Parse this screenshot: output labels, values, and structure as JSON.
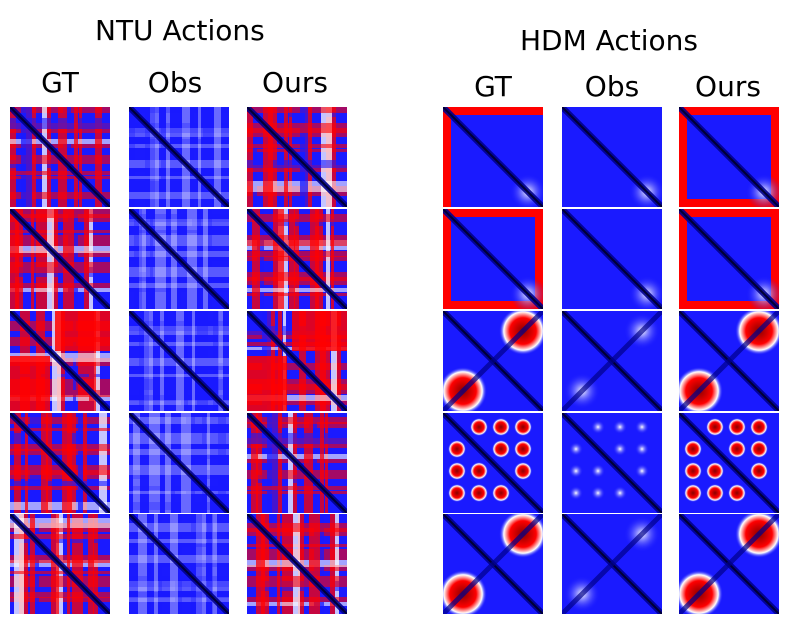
{
  "groups": [
    {
      "title": "NTU Actions",
      "columns": [
        "GT",
        "Obs",
        "Ours"
      ]
    },
    {
      "title": "HDM Actions",
      "columns": [
        "GT",
        "Obs",
        "Ours"
      ]
    }
  ],
  "colors": {
    "low": "#00008b",
    "mid": "#1a1aff",
    "neutral": "#ffffff",
    "high": "#ff0000",
    "highDeep": "#8b0000"
  }
}
